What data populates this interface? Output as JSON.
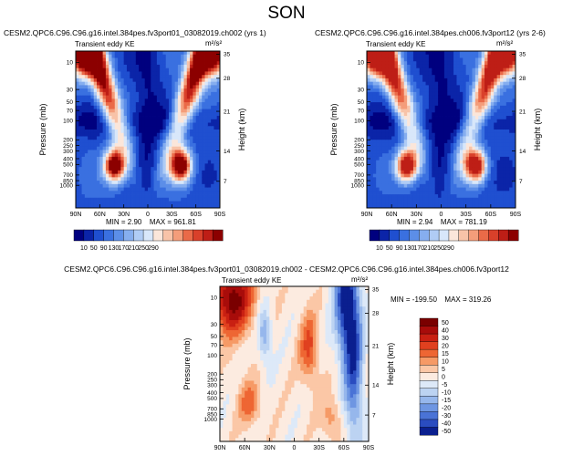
{
  "page_title": "SON",
  "chart_data": [
    {
      "type": "heatmap",
      "title": "CESM2.QPC6.C96.C96.g16.intel.384pes.fv3port01_03082019.ch002 (yrs 1)",
      "subtitle": "Transient eddy KE",
      "units": "m²/s²",
      "xlabel": "",
      "ylabel": "Pressure (mb)",
      "y2label": "Height (km)",
      "x_ticks": [
        "90N",
        "60N",
        "30N",
        "0",
        "30S",
        "60S",
        "90S"
      ],
      "y_ticks": [
        "10",
        "30",
        "50",
        "70",
        "100",
        "200",
        "250",
        "300",
        "400",
        "500",
        "700",
        "850",
        "1000"
      ],
      "y2_ticks": [
        "35",
        "28",
        "21",
        "14",
        "7"
      ],
      "min_label": "MIN =",
      "min_value": "2.90",
      "max_label": "MAX =",
      "max_value": "961.81",
      "colorbar_labels": [
        "10",
        "50",
        "90",
        "130",
        "170",
        "210",
        "250",
        "290"
      ],
      "features": [
        {
          "lat": -75,
          "p": 3,
          "value": 290
        },
        {
          "lat": 75,
          "p": 3,
          "value": 290
        },
        {
          "lat": -45,
          "p": 280,
          "value": 280
        },
        {
          "lat": 45,
          "p": 280,
          "value": 280
        }
      ]
    },
    {
      "type": "heatmap",
      "title": "CESM2.QPC6.C96.C96.g16.intel.384pes.ch006.fv3port12 (yrs 2-6)",
      "subtitle": "Transient eddy KE",
      "units": "m²/s²",
      "xlabel": "",
      "ylabel": "Pressure (mb)",
      "y2label": "Height (km)",
      "x_ticks": [
        "90N",
        "60N",
        "30N",
        "0",
        "30S",
        "60S",
        "90S"
      ],
      "y_ticks": [
        "10",
        "30",
        "50",
        "70",
        "100",
        "200",
        "250",
        "300",
        "400",
        "500",
        "700",
        "850",
        "1000"
      ],
      "y2_ticks": [
        "35",
        "28",
        "21",
        "14",
        "7"
      ],
      "min_label": "MIN =",
      "min_value": "2.94",
      "max_label": "MAX =",
      "max_value": "781.19",
      "colorbar_labels": [
        "10",
        "50",
        "90",
        "130",
        "170",
        "210",
        "250",
        "290"
      ],
      "features": [
        {
          "lat": -75,
          "p": 3,
          "value": 290
        },
        {
          "lat": 75,
          "p": 3,
          "value": 290
        },
        {
          "lat": -45,
          "p": 280,
          "value": 280
        },
        {
          "lat": 45,
          "p": 280,
          "value": 280
        }
      ]
    },
    {
      "type": "heatmap",
      "title": "CESM2.QPC6.C96.C96.g16.intel.384pes.fv3port01_03082019.ch002 - CESM2.QPC6.C96.C96.g16.intel.384pes.ch006.fv3port12",
      "subtitle": "Transient eddy KE",
      "units": "m²/s²",
      "xlabel": "",
      "ylabel": "Pressure (mb)",
      "y2label": "Height (km)",
      "x_ticks": [
        "90N",
        "60N",
        "30N",
        "0",
        "30S",
        "60S",
        "90S"
      ],
      "y_ticks": [
        "10",
        "30",
        "50",
        "70",
        "100",
        "200",
        "250",
        "300",
        "400",
        "500",
        "700",
        "850",
        "1000"
      ],
      "y2_ticks": [
        "35",
        "28",
        "21",
        "14",
        "7"
      ],
      "min_label": "MIN =",
      "min_value": "-199.50",
      "max_label": "MAX =",
      "max_value": "319.26",
      "colorbar_labels": [
        "50",
        "40",
        "30",
        "20",
        "15",
        "10",
        "5",
        "0",
        "-5",
        "-10",
        "-15",
        "-20",
        "-30",
        "-40",
        "-50"
      ],
      "features": [
        {
          "lat": -75,
          "p": 5,
          "value": -45
        },
        {
          "lat": 65,
          "p": 10,
          "value": 45
        },
        {
          "lat": 55,
          "p": 200,
          "value": 20
        },
        {
          "lat": -45,
          "p": 300,
          "value": -15
        }
      ]
    }
  ],
  "colors": {
    "seq": [
      "#00007f",
      "#0b24a8",
      "#1f4fd0",
      "#3a70e0",
      "#5c8ee8",
      "#86aeef",
      "#b0ccf5",
      "#d8e7fa",
      "#fbe6da",
      "#f8c3a8",
      "#f49d7a",
      "#ea6a48",
      "#d9402a",
      "#be1e16",
      "#8c0000"
    ],
    "div": [
      "#7a0000",
      "#a80c0a",
      "#c92012",
      "#e0401f",
      "#ee6633",
      "#f69a66",
      "#fbc7a6",
      "#fcebe0",
      "#dde9f8",
      "#bcd3f2",
      "#96b7ec",
      "#6e96e2",
      "#4a73d6",
      "#2a4cc0",
      "#0a1f8f"
    ]
  }
}
